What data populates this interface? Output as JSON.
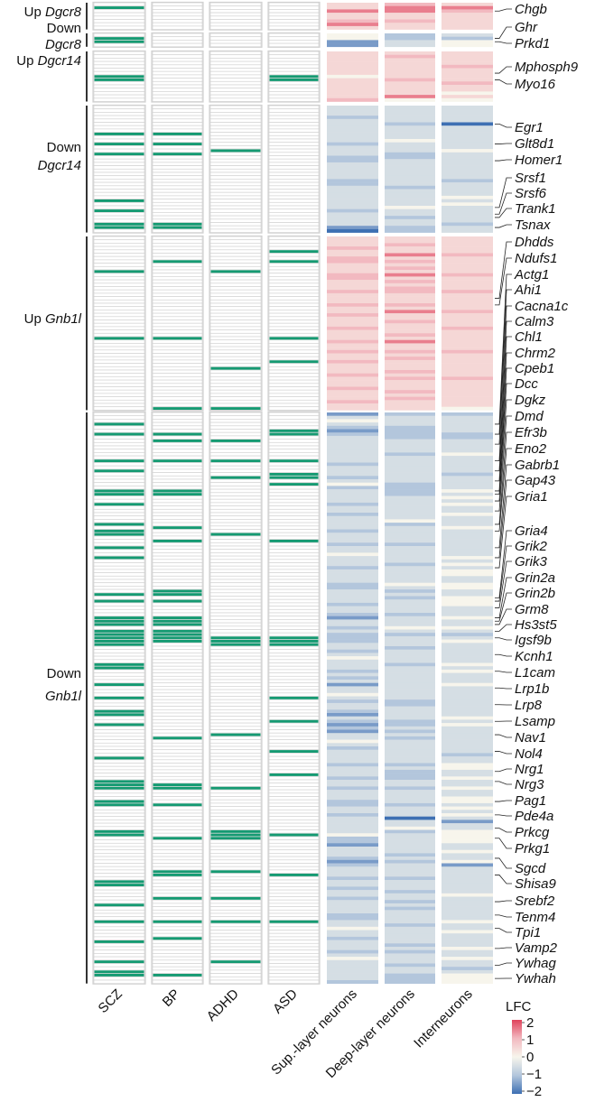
{
  "chart_data": {
    "type": "heatmap",
    "disorder_columns": [
      "SCZ",
      "BP",
      "ADHD",
      "ASD"
    ],
    "lfc_columns": [
      "Sup.-layer neurons",
      "Deep-layer neurons",
      "Interneurons"
    ],
    "legend": {
      "title": "LFC",
      "ticks": [
        "2",
        "1",
        "0",
        "−1",
        "−2"
      ],
      "range": [
        -2,
        2
      ]
    },
    "colors": {
      "marked": "#159a72",
      "neg2": "#3e70b3",
      "neg1": "#b3c6dc",
      "zero": "#f7f5ec",
      "pos1": "#f2b9c0",
      "pos2": "#e0435c"
    },
    "lfc_scale_note_digits": "0..8",
    "groups": [
      {
        "direction": "Up",
        "gene": "Dgcr8",
        "rows": 8,
        "marks": {
          "SCZ": [
            1
          ],
          "BP": [],
          "ADHD": [],
          "ASD": []
        },
        "lfc": {
          "sup": "55755675",
          "deep": "67755655",
          "inter": "57655555"
        },
        "genes": [
          {
            "name": "Chgb",
            "row": 2
          }
        ]
      },
      {
        "direction": "Down",
        "gene": "Dgcr8",
        "rows": 4,
        "marks": {
          "SCZ": [
            1,
            2
          ],
          "BP": [],
          "ADHD": [],
          "ASD": []
        },
        "lfc": {
          "sup": "4411",
          "deep": "2233",
          "inter": "3244"
        },
        "genes": [
          {
            "name": "Ghr",
            "row": 1
          },
          {
            "name": "Prkd1",
            "row": 2
          }
        ]
      },
      {
        "direction": "Up",
        "gene": "Dgcr14",
        "rows": 15,
        "marks": {
          "SCZ": [
            7,
            8
          ],
          "BP": [],
          "ADHD": [],
          "ASD": [
            7,
            8
          ]
        },
        "lfc": {
          "sup": "555555545555556",
          "deep": "565555556555574",
          "inter": "555565555655454"
        },
        "genes": [
          {
            "name": "Mphosph9",
            "row": 6
          },
          {
            "name": "Myo16",
            "row": 8
          }
        ]
      },
      {
        "direction": "Down",
        "gene": "Dgcr14",
        "rows": 38,
        "marks": {
          "SCZ": [
            8,
            11,
            14,
            28,
            31,
            35,
            36
          ],
          "BP": [
            8,
            11,
            14,
            35,
            36
          ],
          "ADHD": [
            13
          ],
          "ASD": []
        },
        "lfc": {
          "sup": "33323333333233322333332233333332333310",
          "deep": "33333233334333223333333323333343323322",
          "inter": "33333033333334333333332333343433333233"
        },
        "genes": [
          {
            "name": "Egr1",
            "row": 5
          },
          {
            "name": "Glt8d1",
            "row": 11
          },
          {
            "name": "Homer1",
            "row": 16
          },
          {
            "name": "Srsf1",
            "row": 30
          },
          {
            "name": "Srsf6",
            "row": 32
          },
          {
            "name": "Trank1",
            "row": 33
          },
          {
            "name": "Tsnax",
            "row": 36
          }
        ]
      },
      {
        "direction": "Up",
        "gene": "Gnb1l",
        "rows": 52,
        "marks": {
          "SCZ": [
            10,
            30
          ],
          "BP": [
            7,
            30,
            51
          ],
          "ADHD": [
            10,
            39,
            51
          ],
          "ASD": [
            4,
            7,
            30,
            37
          ]
        },
        "lfc": {
          "sup": "5556556655566555655565565556555655655655565556555655",
          "deep": "5565575656575656655565755655565755656555656555656555",
          "inter": "5555565555565555655555655556555555655555556555555554"
        },
        "genes": [
          {
            "name": "Dhdds",
            "row": 18
          },
          {
            "name": "Ndufs1",
            "row": 20
          }
        ]
      },
      {
        "direction": "Down",
        "gene": "Gnb1l",
        "rows": 171,
        "marks": {
          "SCZ": [
            3,
            6,
            14,
            17,
            23,
            24,
            27,
            33,
            35,
            36,
            40,
            43,
            54,
            56,
            61,
            62,
            63,
            65,
            66,
            67,
            68,
            69,
            75,
            76,
            81,
            85,
            89,
            90,
            93,
            103,
            110,
            111,
            112,
            116,
            117,
            125,
            126,
            140,
            141,
            147,
            152,
            158,
            164,
            167,
            168
          ],
          "BP": [
            6,
            8,
            14,
            23,
            24,
            34,
            38,
            53,
            54,
            56,
            61,
            62,
            63,
            65,
            66,
            67,
            68,
            97,
            111,
            112,
            117,
            127,
            137,
            138,
            145,
            152,
            157,
            168
          ],
          "ADHD": [
            8,
            14,
            19,
            36,
            67,
            68,
            69,
            96,
            112,
            125,
            126,
            127,
            137,
            145,
            152,
            164
          ],
          "ASD": [
            5,
            6,
            14,
            18,
            19,
            21,
            38,
            67,
            68,
            69,
            85,
            92,
            101,
            108,
            126,
            138,
            152
          ]
        },
        "lfc": {
          "sup": "13432123333333323332342333323323333233323343332333322333323321332322233234333232313343233213212133432333323332332333223323333342213332123332332332333322334332333234333333211",
          "deep": "233322223333233333333222233333334233333233333233333432323333233343233323333233333333332233332232323333333232223323333233303342333333232333323332332323333233333232333233222",
          "inter": "233333223333433333233334343433433343333333343434433443344433343343234333333434333433333333343433333333233443343343344343431334444334334133333333433333334334333343343323"
        },
        "genes": [
          {
            "name": "Actg1",
            "row": 3
          },
          {
            "name": "Ahi1",
            "row": 6
          },
          {
            "name": "Cacna1c",
            "row": 9
          },
          {
            "name": "Calm3",
            "row": 14
          },
          {
            "name": "Chl1",
            "row": 17
          },
          {
            "name": "Chrm2",
            "row": 20
          },
          {
            "name": "Cpeb1",
            "row": 23
          },
          {
            "name": "Dcc",
            "row": 24
          },
          {
            "name": "Dgkz",
            "row": 26
          },
          {
            "name": "Dmd",
            "row": 29
          },
          {
            "name": "Efr3b",
            "row": 33
          },
          {
            "name": "Eno2",
            "row": 35
          },
          {
            "name": "Gabrb1",
            "row": 40
          },
          {
            "name": "Gap43",
            "row": 43
          },
          {
            "name": "Gria1",
            "row": 46
          },
          {
            "name": "Gria4",
            "row": 55
          },
          {
            "name": "Grik2",
            "row": 56
          },
          {
            "name": "Grik3",
            "row": 58
          },
          {
            "name": "Grin2a",
            "row": 61
          },
          {
            "name": "Grin2b",
            "row": 62
          },
          {
            "name": "Grm8",
            "row": 63
          },
          {
            "name": "Hs3st5",
            "row": 65
          },
          {
            "name": "Igsf9b",
            "row": 67
          },
          {
            "name": "Kcnh1",
            "row": 72
          },
          {
            "name": "L1cam",
            "row": 77
          },
          {
            "name": "Lrp1b",
            "row": 82
          },
          {
            "name": "Lrp8",
            "row": 87
          },
          {
            "name": "Lsamp",
            "row": 92
          },
          {
            "name": "Nav1",
            "row": 96
          },
          {
            "name": "Nol4",
            "row": 101
          },
          {
            "name": "Nrg1",
            "row": 107
          },
          {
            "name": "Nrg3",
            "row": 110
          },
          {
            "name": "Pag1",
            "row": 116
          },
          {
            "name": "Pde4a",
            "row": 120
          },
          {
            "name": "Prkcg",
            "row": 124
          },
          {
            "name": "Prkg1",
            "row": 127
          },
          {
            "name": "Sgcd",
            "row": 133
          },
          {
            "name": "Shisa9",
            "row": 138
          },
          {
            "name": "Srebf2",
            "row": 146
          },
          {
            "name": "Tenm4",
            "row": 150
          },
          {
            "name": "Tpi1",
            "row": 154
          },
          {
            "name": "Vamp2",
            "row": 160
          },
          {
            "name": "Ywhag",
            "row": 165
          },
          {
            "name": "Ywhah",
            "row": 169
          }
        ]
      }
    ]
  }
}
